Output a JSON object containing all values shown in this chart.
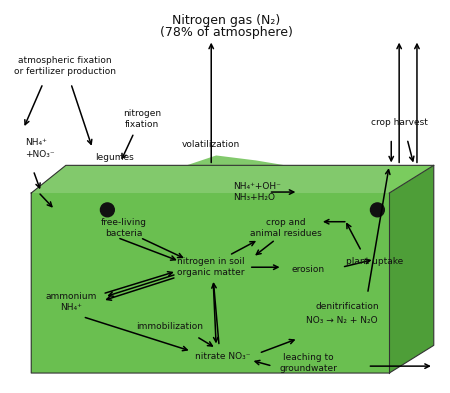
{
  "title_line1": "Nitrogen gas (N₂)",
  "title_line2": "(78% of atmosphere)",
  "bg_color": "#ffffff",
  "soil_front_color": "#6abf50",
  "soil_side_color": "#4e9e38",
  "soil_top_color": "#7acc5e",
  "soil_right_light": "#8cd670",
  "figsize": [
    4.5,
    3.93
  ],
  "dpi": 100,
  "font_size": 6.5,
  "text_color": "#111111",
  "arrow_color": "#000000",
  "labels": {
    "atm_fix": "atmospheric fixation\nor fertilizer production",
    "n_fix": "nitrogen\nfixation",
    "nh4_no3": "NH₄⁺\n+NO₃⁻",
    "legumes": "legumes",
    "free_bact": "free-living\nbacteria",
    "volatilization": "volatilization",
    "nh3_oh": "NH₄⁺+OH⁻\nNH₃+H₂O",
    "crop_animal": "crop and\nanimal residues",
    "plant_uptake": "plant uptake",
    "crop_harvest": "crop harvest",
    "n_soil": "nitrogen in soil\norganic matter",
    "erosion": "erosion",
    "ammonium": "ammonium\nNH₄⁺",
    "immob": "immobilization",
    "nitrate": "nitrate NO₃⁻",
    "denitrif": "denitrification",
    "no3_n2": "NO₃ → N₂ + N₂O",
    "leaching": "leaching to\ngroundwater"
  }
}
